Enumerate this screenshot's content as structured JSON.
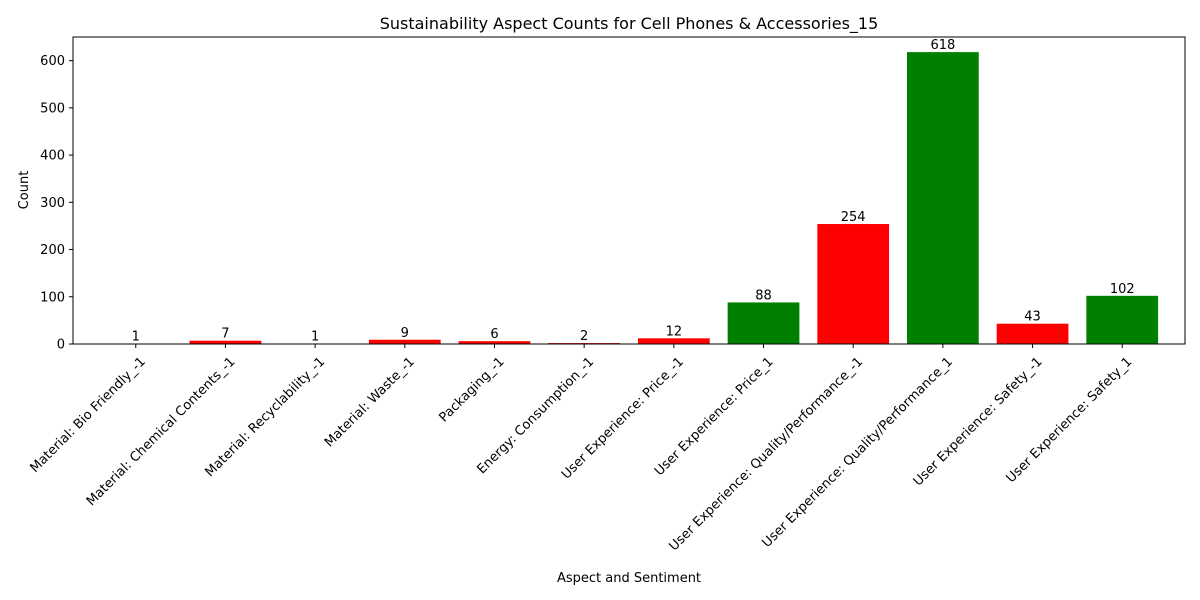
{
  "chart_data": {
    "type": "bar",
    "title": "Sustainability Aspect Counts for Cell Phones & Accessories_15",
    "xlabel": "Aspect and Sentiment",
    "ylabel": "Count",
    "ylim": [
      0,
      650
    ],
    "yticks": [
      0,
      100,
      200,
      300,
      400,
      500,
      600
    ],
    "grid": false,
    "categories": [
      "Material: Bio Friendly_-1",
      "Material: Chemical Contents_-1",
      "Material: Recyclability_-1",
      "Material: Waste_-1",
      "Packaging_-1",
      "Energy: Consumption_-1",
      "User Experience: Price_-1",
      "User Experience: Price_1",
      "User Experience: Quality/Performance_-1",
      "User Experience: Quality/Performance_1",
      "User Experience: Safety_-1",
      "User Experience: Safety_1"
    ],
    "values": [
      1,
      7,
      1,
      9,
      6,
      2,
      12,
      88,
      254,
      618,
      43,
      102
    ],
    "colors": [
      "#ff0000",
      "#ff0000",
      "#ff0000",
      "#ff0000",
      "#ff0000",
      "#ff0000",
      "#ff0000",
      "#008000",
      "#ff0000",
      "#008000",
      "#ff0000",
      "#008000"
    ]
  }
}
